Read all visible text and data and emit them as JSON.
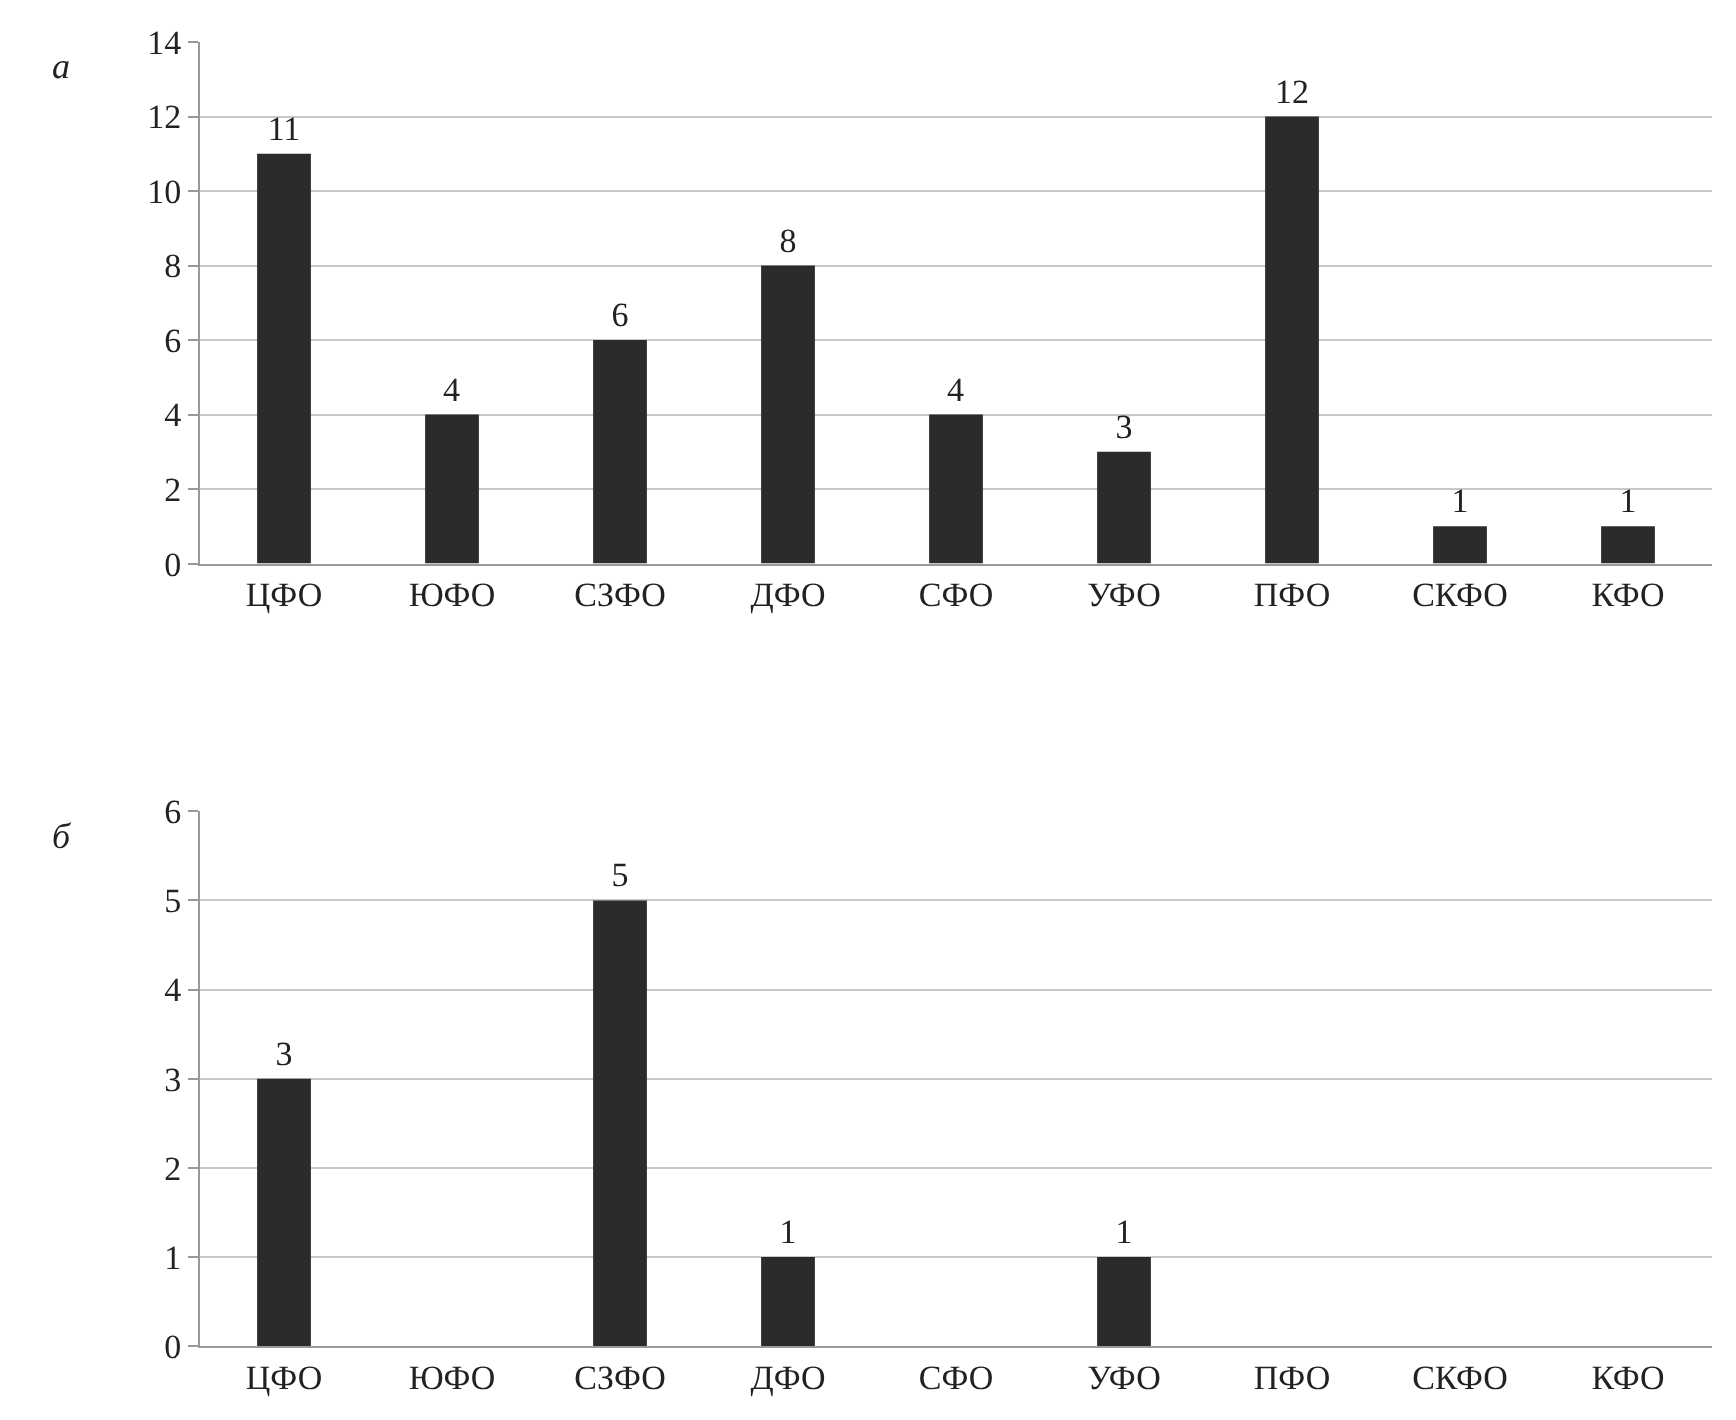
{
  "chart_data": [
    {
      "type": "bar",
      "title": "а",
      "categories": [
        "ЦФО",
        "ЮФО",
        "СЗФО",
        "ДФО",
        "СФО",
        "УФО",
        "ПФО",
        "СКФО",
        "КФО"
      ],
      "values": [
        11,
        4,
        6,
        8,
        4,
        3,
        12,
        1,
        1
      ],
      "color": "#2b2b2b",
      "ylim": [
        0,
        14
      ],
      "yticks": [
        0,
        2,
        4,
        6,
        8,
        10,
        12,
        14
      ],
      "grid": "y",
      "data_labels": true
    },
    {
      "type": "bar",
      "title": "б",
      "categories": [
        "ЦФО",
        "ЮФО",
        "СЗФО",
        "ДФО",
        "СФО",
        "УФО",
        "ПФО",
        "СКФО",
        "КФО"
      ],
      "values": [
        3,
        0,
        5,
        1,
        0,
        1,
        0,
        0,
        0
      ],
      "value_labels": [
        "3",
        null,
        "5",
        "1",
        null,
        "1",
        null,
        null,
        null
      ],
      "color": "#2b2b2b",
      "ylim": [
        0,
        6
      ],
      "yticks": [
        0,
        1,
        2,
        3,
        4,
        5,
        6
      ],
      "grid": "y"
    }
  ]
}
